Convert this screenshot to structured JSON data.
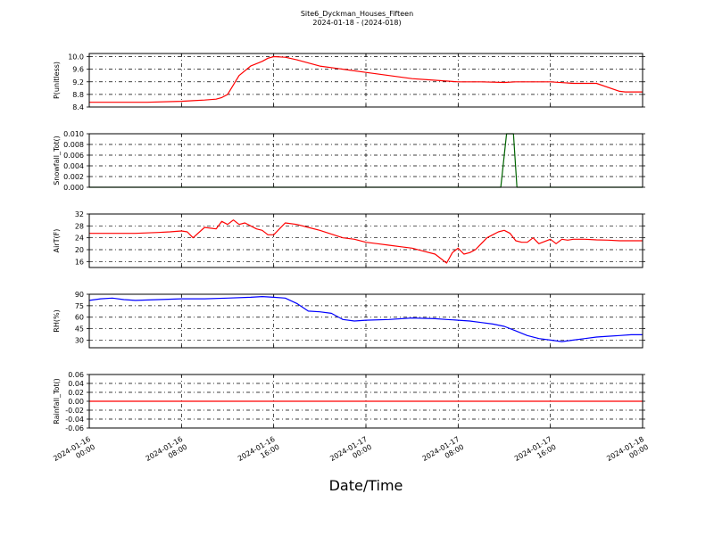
{
  "title": "Site6_Dyckman_Houses_Fifteen",
  "subtitle": "2024-01-18 - (2024-018)",
  "chart_data": {
    "type": "line",
    "xlabel": "Date/Time",
    "x_range": [
      "2024-01-16 00:00",
      "2024-01-18 00:00"
    ],
    "x_ticks": [
      "2024-01-16 00:00",
      "2024-01-16 08:00",
      "2024-01-16 16:00",
      "2024-01-17 00:00",
      "2024-01-17 08:00",
      "2024-01-17 16:00",
      "2024-01-18 00:00"
    ],
    "x_tick_labels": [
      [
        "2024-01-16",
        "00:00"
      ],
      [
        "2024-01-16",
        "08:00"
      ],
      [
        "2024-01-16",
        "16:00"
      ],
      [
        "2024-01-17",
        "00:00"
      ],
      [
        "2024-01-17",
        "08:00"
      ],
      [
        "2024-01-17",
        "16:00"
      ],
      [
        "2024-01-18",
        "00:00"
      ]
    ],
    "grid": true,
    "panels": [
      {
        "ylabel": "P(unitless)",
        "ylim": [
          8.4,
          10.1
        ],
        "yticks": [
          8.4,
          8.8,
          9.2,
          9.6,
          10.0
        ],
        "ytick_labels": [
          "8.4",
          "8.8",
          "9.2",
          "9.6",
          "10.0"
        ],
        "color": "#ff0000",
        "series": [
          {
            "x": [
              0,
              1,
              3,
              5,
              8,
              9,
              10,
              11,
              11.5,
              12,
              13,
              14,
              15,
              15.5,
              16,
              17,
              18,
              20,
              22,
              24,
              26,
              28,
              30,
              32,
              34,
              36,
              37,
              38,
              40,
              42,
              44,
              46,
              46.5,
              47,
              48
            ],
            "y": [
              8.55,
              8.55,
              8.55,
              8.55,
              8.58,
              8.6,
              8.62,
              8.65,
              8.7,
              8.8,
              9.4,
              9.7,
              9.85,
              9.95,
              10.0,
              9.98,
              9.9,
              9.7,
              9.6,
              9.5,
              9.4,
              9.3,
              9.25,
              9.2,
              9.2,
              9.18,
              9.2,
              9.2,
              9.2,
              9.15,
              9.15,
              8.9,
              8.88,
              8.88,
              8.88
            ]
          }
        ]
      },
      {
        "ylabel": "Snowfall_Tot()",
        "ylim": [
          0.0,
          0.01
        ],
        "yticks": [
          0.0,
          0.002,
          0.004,
          0.006,
          0.008,
          0.01
        ],
        "ytick_labels": [
          "0.000",
          "0.002",
          "0.004",
          "0.006",
          "0.008",
          "0.010"
        ],
        "color": "#006400",
        "series": [
          {
            "x": [
              0,
              35.7,
              36.2,
              36.5,
              36.8,
              37.1,
              48
            ],
            "y": [
              0,
              0,
              0.01,
              0.01,
              0.01,
              0,
              0
            ]
          }
        ]
      },
      {
        "ylabel": "AirT(F)",
        "ylim": [
          14,
          32
        ],
        "yticks": [
          16,
          20,
          24,
          28,
          32
        ],
        "ytick_labels": [
          "16",
          "20",
          "24",
          "28",
          "32"
        ],
        "color": "#ff0000",
        "series": [
          {
            "x": [
              0,
              2,
              4,
              6,
              7,
              8,
              8.5,
              9,
              10,
              11,
              11.5,
              12,
              12.5,
              13,
              13.5,
              14,
              14.5,
              15,
              15.5,
              16,
              17,
              18,
              19,
              20,
              22,
              23,
              24,
              25,
              26,
              27,
              28,
              29,
              30,
              31,
              31.5,
              32,
              32.5,
              33,
              33.5,
              34,
              34.5,
              35,
              35.5,
              36,
              36.5,
              37,
              37.5,
              38,
              38.5,
              39,
              40,
              40.5,
              41,
              41.5,
              42,
              43,
              44,
              45,
              46,
              47,
              48
            ],
            "y": [
              25.5,
              25.5,
              25.5,
              25.8,
              26,
              26.3,
              26,
              24,
              27.5,
              27,
              29.5,
              28.5,
              30,
              28.5,
              29,
              28,
              27,
              26.5,
              25,
              25,
              29,
              28.5,
              27.5,
              26.5,
              24,
              23.5,
              22.5,
              22,
              21.5,
              21,
              20.5,
              19.5,
              18.5,
              15.5,
              19,
              20.5,
              18.5,
              19,
              20,
              22,
              24,
              25,
              26,
              26.5,
              25.5,
              23,
              22.5,
              22.5,
              24,
              22,
              23.5,
              22,
              23.5,
              23.2,
              23.5,
              23.5,
              23.3,
              23.2,
              23,
              23,
              23
            ]
          }
        ]
      },
      {
        "ylabel": "RH(%)",
        "ylim": [
          20,
          90
        ],
        "yticks": [
          30,
          45,
          60,
          75,
          90
        ],
        "ytick_labels": [
          "30",
          "45",
          "60",
          "75",
          "90"
        ],
        "color": "#0000ff",
        "series": [
          {
            "x": [
              0,
              1,
              2,
              3,
              4,
              6,
              8,
              10,
              12,
              14,
              15,
              16,
              17,
              18,
              19,
              20,
              21,
              22,
              23,
              24,
              26,
              28,
              30,
              31,
              32,
              33,
              34,
              35,
              36,
              36.5,
              37,
              38,
              39,
              40,
              41,
              42,
              43,
              44,
              45,
              46,
              47,
              48
            ],
            "y": [
              82,
              84,
              85,
              83,
              82,
              83,
              84,
              84,
              85,
              86,
              87,
              86,
              85,
              78,
              68,
              67,
              65,
              57,
              55,
              56,
              57,
              59,
              58,
              57,
              56,
              55,
              53,
              51,
              48,
              45,
              42,
              36,
              32,
              30,
              28,
              30,
              32,
              34,
              35,
              36,
              37,
              37
            ]
          }
        ]
      },
      {
        "ylabel": "Rainfall_Tot()",
        "ylim": [
          -0.06,
          0.06
        ],
        "yticks": [
          -0.06,
          -0.04,
          -0.02,
          0.0,
          0.02,
          0.04,
          0.06
        ],
        "ytick_labels": [
          "-0.06",
          "-0.04",
          "-0.02",
          "0.00",
          "0.02",
          "0.04",
          "0.06"
        ],
        "color": "#ff0000",
        "series": [
          {
            "x": [
              0,
              48
            ],
            "y": [
              0,
              0
            ]
          }
        ]
      }
    ]
  }
}
